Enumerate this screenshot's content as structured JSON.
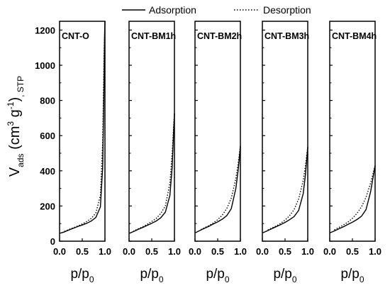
{
  "chart_data": {
    "type": "line",
    "ylabel": {
      "base": "V",
      "sub": "ads",
      "unit_open": " (cm",
      "unit_sup1": "3",
      "unit_mid": " g",
      "unit_sup2": "-1",
      "unit_close": ")",
      "suffix": ", STP"
    },
    "xlabel": {
      "base": "p/p",
      "sub": "0"
    },
    "ylim": [
      0,
      1250
    ],
    "xlim": [
      0,
      1.0
    ],
    "y_ticks": [
      "0",
      "200",
      "400",
      "600",
      "800",
      "1000",
      "1200"
    ],
    "y_tick_values": [
      0,
      200,
      400,
      600,
      800,
      1000,
      1200
    ],
    "x_ticks": [
      "0.0",
      "0.5",
      "1.0"
    ],
    "x_tick_values": [
      0,
      0.5,
      1.0
    ],
    "legend": {
      "position": "top",
      "entries": [
        {
          "label": "Adsorption",
          "style": "solid"
        },
        {
          "label": "Desorption",
          "style": "dotted"
        }
      ]
    },
    "panels": [
      {
        "title": "CNT-O",
        "series": [
          {
            "name": "Adsorption",
            "x": [
              0.01,
              0.1,
              0.2,
              0.3,
              0.4,
              0.5,
              0.6,
              0.7,
              0.8,
              0.9,
              0.95,
              0.98,
              0.99,
              1.0
            ],
            "y": [
              45,
              52,
              63,
              73,
              83,
              92,
              102,
              115,
              135,
              195,
              420,
              900,
              1150,
              1250
            ]
          },
          {
            "name": "Desorption",
            "x": [
              1.0,
              0.98,
              0.95,
              0.9,
              0.8,
              0.7,
              0.6,
              0.5,
              0.4,
              0.3,
              0.2,
              0.1
            ],
            "y": [
              1250,
              1050,
              560,
              260,
              160,
              130,
              112,
              98,
              86,
              76,
              66,
              55
            ]
          }
        ]
      },
      {
        "title": "CNT-BM1h",
        "series": [
          {
            "name": "Adsorption",
            "x": [
              0.01,
              0.1,
              0.2,
              0.3,
              0.4,
              0.5,
              0.6,
              0.7,
              0.8,
              0.9,
              0.95,
              0.98,
              1.0
            ],
            "y": [
              45,
              55,
              67,
              78,
              90,
              102,
              115,
              133,
              165,
              260,
              420,
              610,
              725
            ]
          },
          {
            "name": "Desorption",
            "x": [
              1.0,
              0.98,
              0.95,
              0.9,
              0.8,
              0.7,
              0.6,
              0.5,
              0.4,
              0.3,
              0.2,
              0.1
            ],
            "y": [
              725,
              640,
              500,
              330,
              200,
              158,
              130,
              112,
              96,
              82,
              70,
              58
            ]
          }
        ]
      },
      {
        "title": "CNT-BM2h",
        "series": [
          {
            "name": "Adsorption",
            "x": [
              0.01,
              0.1,
              0.2,
              0.3,
              0.4,
              0.5,
              0.6,
              0.7,
              0.8,
              0.9,
              0.95,
              0.98,
              1.0
            ],
            "y": [
              48,
              60,
              72,
              84,
              97,
              110,
              125,
              145,
              185,
              300,
              400,
              480,
              540
            ]
          },
          {
            "name": "Desorption",
            "x": [
              1.0,
              0.98,
              0.95,
              0.9,
              0.8,
              0.7,
              0.6,
              0.5,
              0.4,
              0.3,
              0.2,
              0.1
            ],
            "y": [
              540,
              500,
              440,
              355,
              245,
              185,
              148,
              122,
              103,
              88,
              75,
              62
            ]
          }
        ]
      },
      {
        "title": "CNT-BM3h",
        "series": [
          {
            "name": "Adsorption",
            "x": [
              0.01,
              0.1,
              0.2,
              0.3,
              0.4,
              0.5,
              0.6,
              0.7,
              0.8,
              0.9,
              0.95,
              0.98,
              1.0
            ],
            "y": [
              48,
              58,
              70,
              82,
              94,
              107,
              122,
              140,
              175,
              270,
              380,
              470,
              535
            ]
          },
          {
            "name": "Desorption",
            "x": [
              1.0,
              0.98,
              0.95,
              0.9,
              0.8,
              0.7,
              0.6,
              0.5,
              0.4,
              0.3,
              0.2,
              0.1
            ],
            "y": [
              535,
              495,
              430,
              345,
              240,
              180,
              145,
              120,
              101,
              86,
              74,
              61
            ]
          }
        ]
      },
      {
        "title": "CNT-BM4h",
        "series": [
          {
            "name": "Adsorption",
            "x": [
              0.01,
              0.1,
              0.2,
              0.3,
              0.4,
              0.5,
              0.6,
              0.7,
              0.8,
              0.9,
              0.95,
              0.98,
              1.0
            ],
            "y": [
              48,
              58,
              70,
              82,
              95,
              108,
              123,
              142,
              180,
              280,
              355,
              400,
              430
            ]
          },
          {
            "name": "Desorption",
            "x": [
              1.0,
              0.98,
              0.95,
              0.9,
              0.8,
              0.7,
              0.6,
              0.5,
              0.4,
              0.3,
              0.2,
              0.1
            ],
            "y": [
              430,
              410,
              380,
              330,
              250,
              195,
              158,
              130,
              108,
              92,
              78,
              64
            ]
          }
        ]
      }
    ]
  }
}
